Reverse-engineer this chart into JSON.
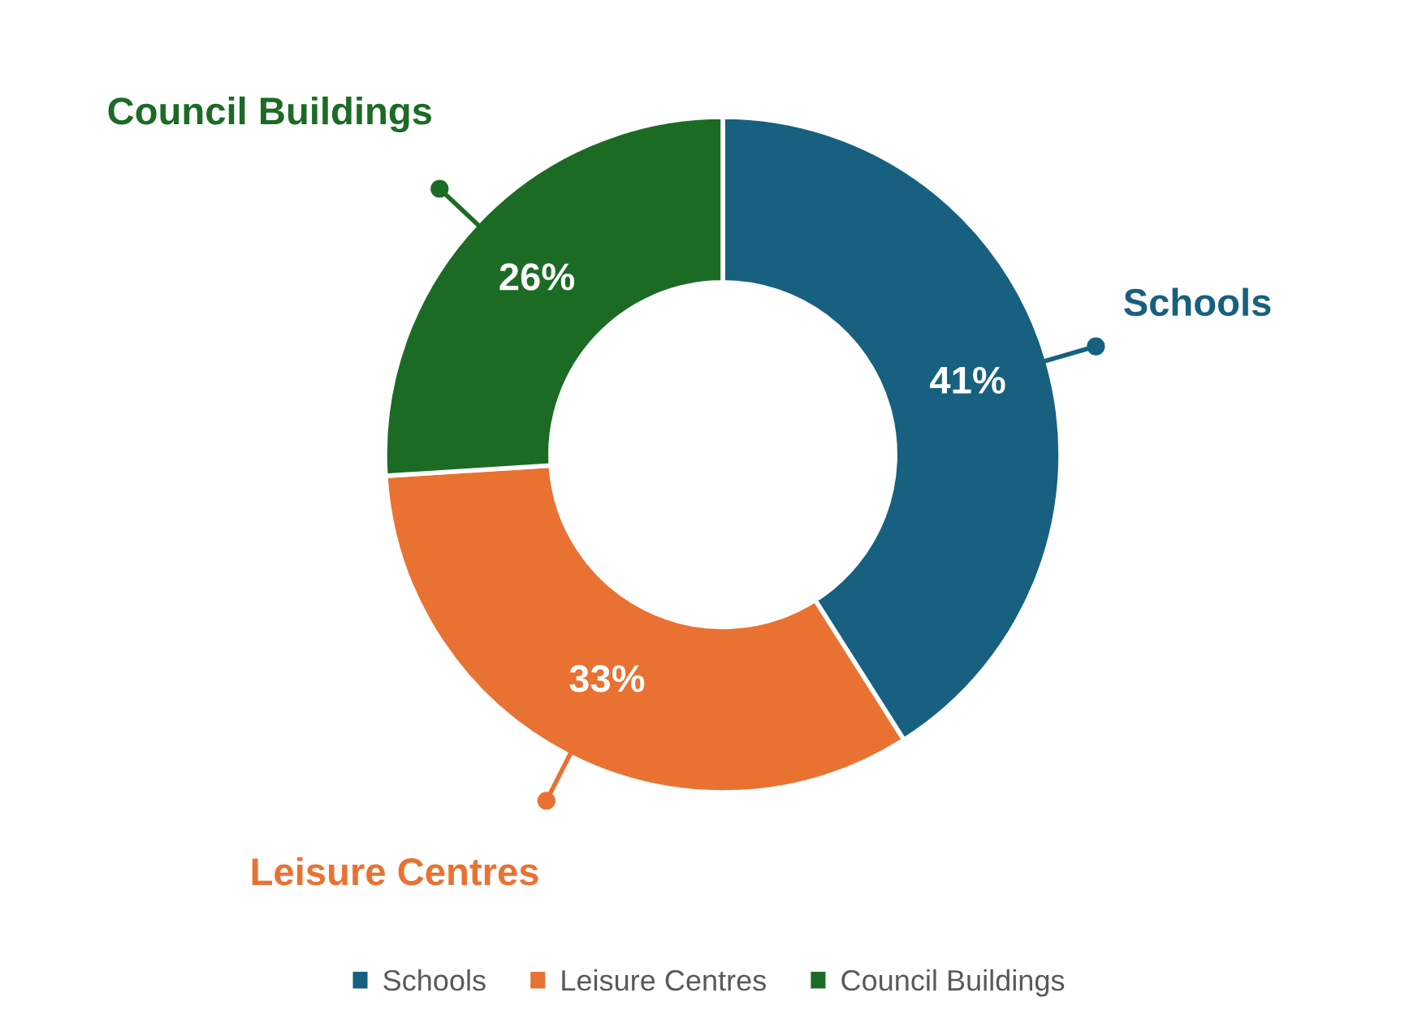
{
  "chart_data": {
    "type": "donut",
    "categories": [
      "Schools",
      "Leisure Centres",
      "Council Buildings"
    ],
    "values": [
      41,
      33,
      26
    ],
    "colors": [
      "#17607f",
      "#e97232",
      "#1c6b25"
    ],
    "value_labels": [
      "41%",
      "33%",
      "26%"
    ],
    "legend": "bottom"
  }
}
